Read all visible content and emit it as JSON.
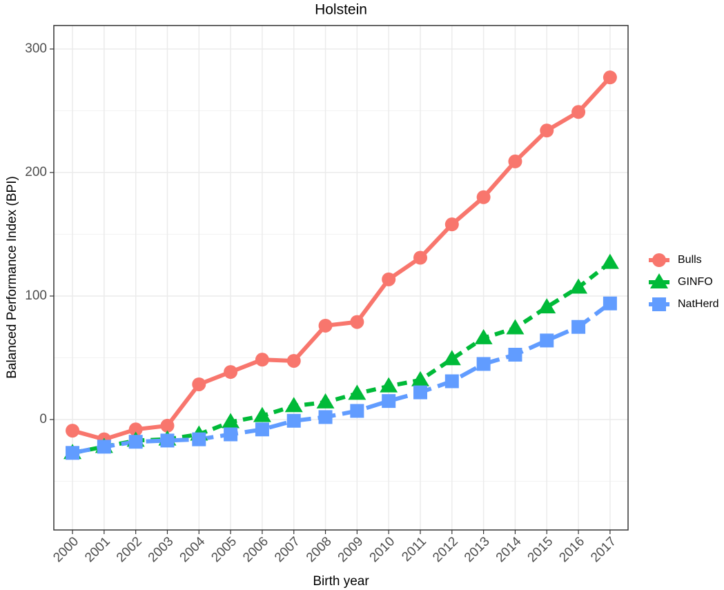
{
  "chart_data": {
    "type": "line",
    "title": "Holstein",
    "xlabel": "Birth year",
    "ylabel": "Balanced Performance Index (BPI)",
    "x": [
      2000,
      2001,
      2002,
      2003,
      2004,
      2005,
      2006,
      2007,
      2008,
      2009,
      2010,
      2011,
      2012,
      2013,
      2014,
      2015,
      2016,
      2017
    ],
    "series": [
      {
        "name": "Bulls",
        "color": "#F8766D",
        "marker": "circle",
        "dash": "solid",
        "values": [
          -9,
          -16,
          -8,
          -5,
          28.5,
          38.5,
          48.5,
          47.5,
          76,
          79,
          113.5,
          131,
          158,
          180,
          209,
          234,
          249,
          277
        ]
      },
      {
        "name": "GINFO",
        "color": "#00BA38",
        "marker": "triangle",
        "dash": "dashed",
        "values": [
          -27,
          -22,
          -17,
          -16,
          -12,
          -2,
          3,
          11,
          14,
          21,
          27,
          32,
          49,
          66,
          74,
          91,
          107,
          127
        ]
      },
      {
        "name": "NatHerd",
        "color": "#619CFF",
        "marker": "square",
        "dash": "longdash",
        "values": [
          -27,
          -22,
          -18,
          -17,
          -16,
          -12,
          -8,
          -1,
          2,
          7,
          15,
          22,
          31,
          45,
          52.5,
          64,
          75,
          94
        ]
      }
    ],
    "xlim": [
      1999.41,
      2017.57
    ],
    "xticks": [
      2000,
      2001,
      2002,
      2003,
      2004,
      2005,
      2006,
      2007,
      2008,
      2009,
      2010,
      2011,
      2012,
      2013,
      2014,
      2015,
      2016,
      2017
    ],
    "ylim": [
      -89.4,
      319
    ],
    "yticks": [
      0,
      100,
      200,
      300
    ],
    "yminor": [
      -50,
      50,
      150,
      250
    ],
    "grid": true,
    "legend": "right"
  }
}
